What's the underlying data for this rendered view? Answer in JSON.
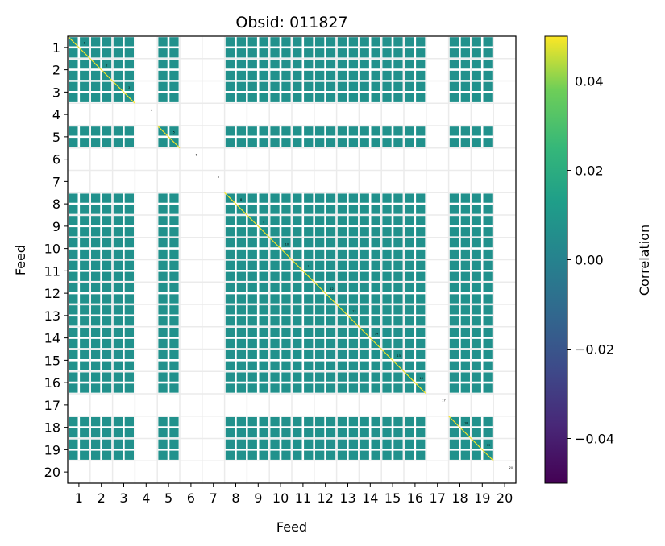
{
  "chart_data": {
    "type": "heatmap",
    "title": "Obsid: 011827",
    "xlabel": "Feed",
    "ylabel": "Feed",
    "x_ticks": [
      "1",
      "2",
      "3",
      "4",
      "5",
      "6",
      "7",
      "8",
      "9",
      "10",
      "11",
      "12",
      "13",
      "14",
      "15",
      "16",
      "17",
      "18",
      "19",
      "20"
    ],
    "y_ticks": [
      "1",
      "2",
      "3",
      "4",
      "5",
      "6",
      "7",
      "8",
      "9",
      "10",
      "11",
      "12",
      "13",
      "14",
      "15",
      "16",
      "17",
      "18",
      "19",
      "20"
    ],
    "active_feeds": [
      1,
      2,
      3,
      5,
      8,
      9,
      10,
      11,
      12,
      13,
      14,
      15,
      16,
      18,
      19
    ],
    "empty_feeds": [
      4,
      6,
      7,
      17,
      20
    ],
    "off_diagonal_value": 0.0,
    "diagonal_value": 0.05,
    "grid": true,
    "colorbar": {
      "label": "Correlation",
      "range": [
        -0.05,
        0.05
      ],
      "ticks": [
        0.04,
        0.02,
        0.0,
        -0.02,
        -0.04
      ],
      "tick_labels": [
        "0.04",
        "0.02",
        "0.00",
        "−0.02",
        "−0.04"
      ],
      "colormap": "viridis"
    },
    "colors": {
      "mid": "#21918c",
      "high": "#fde725",
      "low": "#440154",
      "grid": "#ebebeb"
    }
  }
}
